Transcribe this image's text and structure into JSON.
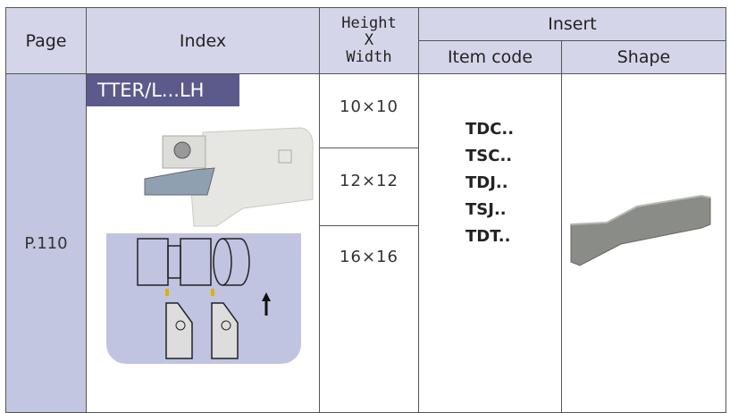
{
  "header": {
    "page": "Page",
    "index": "Index",
    "height_x_width": [
      "Height",
      "X",
      "Width"
    ],
    "insert": "Insert",
    "item_code": "Item code",
    "shape": "Shape"
  },
  "row": {
    "page": "P.110",
    "index_label": "TTER/L...LH",
    "sizes": [
      "10×10",
      "12×12",
      "16×16"
    ],
    "item_codes": [
      "TDC..",
      "TSC..",
      "TDJ..",
      "TSJ..",
      "TDT.."
    ]
  },
  "colors": {
    "header_bg": "#d5d5ea",
    "page_col_bg": "#c2c6e0",
    "badge_bg": "#5c5a8a",
    "diagram_bg": "#c0c4e0"
  }
}
